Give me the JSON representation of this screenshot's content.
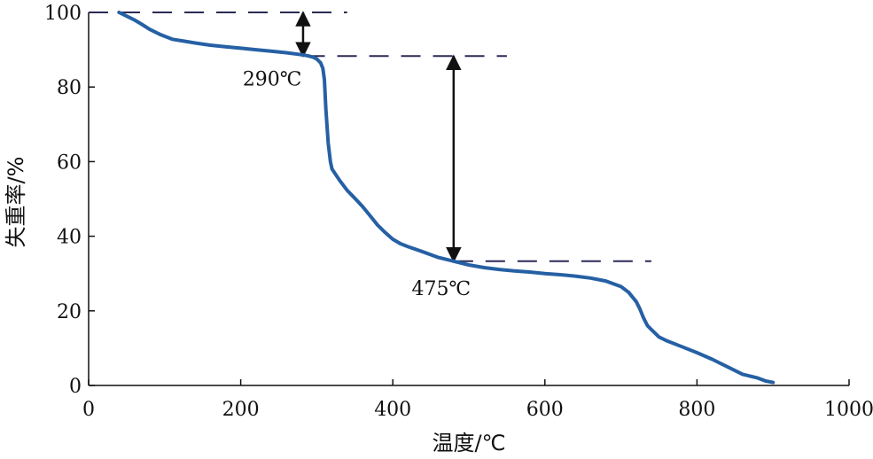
{
  "chart_data": {
    "type": "line",
    "xlabel": "温度/℃",
    "ylabel": "失重率/%",
    "xlim": [
      0,
      1000
    ],
    "ylim": [
      0,
      100
    ],
    "x_ticks": [
      "0",
      "200",
      "400",
      "600",
      "800",
      "1000"
    ],
    "y_ticks": [
      "0",
      "20",
      "40",
      "60",
      "80",
      "100"
    ],
    "grid": false,
    "colors": {
      "series": "#2660a4",
      "axes": "#111111",
      "guides": "#2a2a55"
    },
    "series": [
      {
        "x": [
          40,
          50,
          60,
          70,
          80,
          95,
          110,
          125,
          140,
          160,
          180,
          200,
          220,
          240,
          260,
          275,
          285,
          290,
          295,
          300,
          305,
          308,
          310,
          312,
          315,
          318,
          320,
          330,
          340,
          350,
          360,
          370,
          380,
          390,
          400,
          410,
          420,
          440,
          460,
          480,
          500,
          520,
          540,
          560,
          580,
          600,
          620,
          640,
          660,
          680,
          700,
          710,
          720,
          725,
          730,
          735,
          740,
          745,
          750,
          760,
          780,
          800,
          820,
          840,
          860,
          880,
          890,
          900
        ],
        "y": [
          100,
          99,
          98,
          96.8,
          95.5,
          94,
          92.8,
          92.3,
          91.8,
          91.2,
          90.8,
          90.4,
          90.0,
          89.6,
          89.2,
          88.8,
          88.5,
          88.3,
          88,
          87.5,
          86.5,
          85,
          82,
          74,
          65,
          60,
          58,
          55,
          52.3,
          50.2,
          48,
          45.5,
          43,
          41,
          39.2,
          38,
          37.2,
          35.8,
          34.3,
          33.3,
          32.3,
          31.6,
          31.1,
          30.7,
          30.4,
          30.0,
          29.7,
          29.3,
          28.8,
          28,
          26.5,
          25,
          22.5,
          20.5,
          18,
          16,
          15,
          14,
          13,
          12,
          10.4,
          8.8,
          7,
          5,
          3,
          2,
          1.2,
          0.8
        ]
      }
    ],
    "annotations": [
      {
        "label": "290℃",
        "x": 290,
        "y": 88.3
      },
      {
        "label": "475℃",
        "x": 475,
        "y": 33.3
      }
    ],
    "reference_lines": [
      {
        "y": 100,
        "x_from": 0,
        "x_to": 340
      },
      {
        "y": 88.3,
        "x_from": 285,
        "x_to": 550
      },
      {
        "y": 33.3,
        "x_from": 480,
        "x_to": 740
      }
    ],
    "arrows": [
      {
        "x": 282,
        "y_from": 100,
        "y_to": 88.3
      },
      {
        "x": 480,
        "y_from": 88.3,
        "y_to": 33.3
      }
    ]
  }
}
